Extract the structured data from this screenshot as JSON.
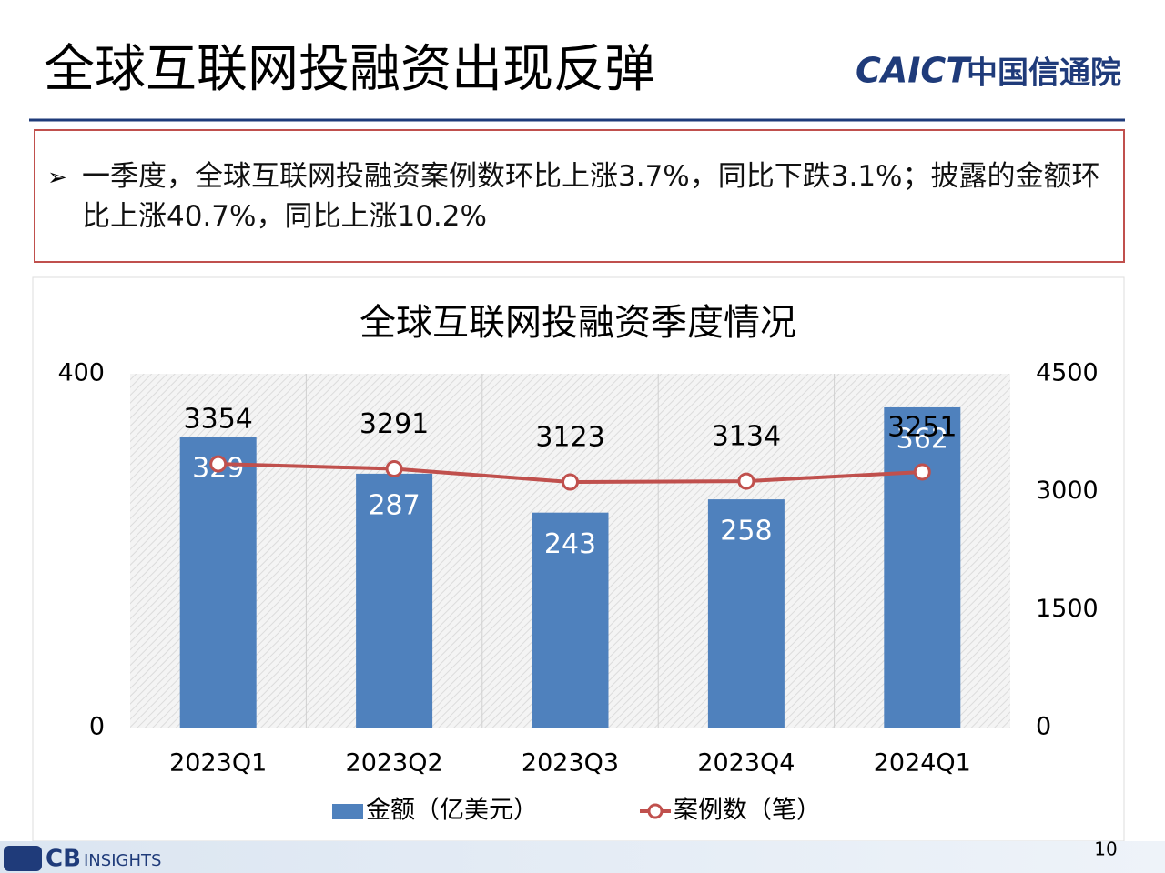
{
  "header": {
    "title": "全球互联网投融资出现反弹",
    "logo_latin": "CAICT",
    "logo_cn": "中国信通院"
  },
  "summary": {
    "text": "一季度，全球互联网投融资案例数环比上涨3.7%，同比下跌3.1%；披露的金额环比上涨40.7%，同比上涨10.2%"
  },
  "footer": {
    "source_a": "CB",
    "source_b": "INSIGHTS",
    "page": "10"
  },
  "chart_data": {
    "type": "combo",
    "title": "全球互联网投融资季度情况",
    "categories": [
      "2023Q1",
      "2023Q2",
      "2023Q3",
      "2023Q4",
      "2024Q1"
    ],
    "series": [
      {
        "name": "金额（亿美元）",
        "type": "bar",
        "color": "#4f81bd",
        "values": [
          329,
          287,
          243,
          258,
          362
        ]
      },
      {
        "name": "案例数（笔）",
        "type": "line",
        "axis": "y2",
        "color": "#c0504d",
        "values": [
          3354,
          3291,
          3123,
          3134,
          3251
        ]
      }
    ],
    "ylim": [
      0,
      400
    ],
    "yticks": [
      0,
      400
    ],
    "y2lim": [
      0,
      4500
    ],
    "y2ticks": [
      0,
      1500,
      3000,
      4500
    ],
    "legend": "bottom"
  }
}
